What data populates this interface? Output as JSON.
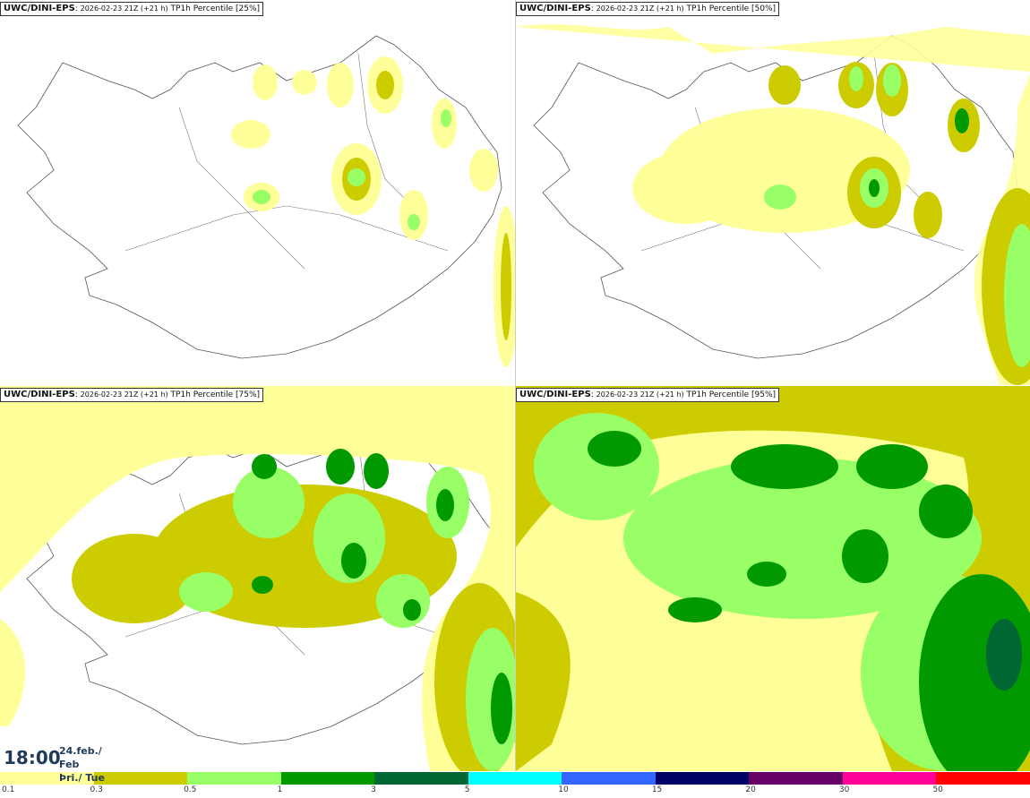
{
  "panels": [
    {
      "model": "UWC/DINI-EPS",
      "run": "2026-02-23 21Z (+21 h)",
      "field": "TP1h Percentile [25%]"
    },
    {
      "model": "UWC/DINI-EPS",
      "run": "2026-02-23 21Z (+21 h)",
      "field": "TP1h Percentile [50%]"
    },
    {
      "model": "UWC/DINI-EPS",
      "run": "2026-02-23 21Z (+21 h)",
      "field": "TP1h Percentile [75%]"
    },
    {
      "model": "UWC/DINI-EPS",
      "run": "2026-02-23 21Z (+21 h)",
      "field": "TP1h Percentile [95%]"
    }
  ],
  "time": {
    "hour": "18:00",
    "date_line": "24.feb./ Feb",
    "day_line": "Þri./ Tue"
  },
  "legend": {
    "colors": [
      "#ffff99",
      "#cccc00",
      "#99ff66",
      "#009900",
      "#006633",
      "#00ffff",
      "#3366ff",
      "#000066",
      "#660066",
      "#ff0099",
      "#ff0000"
    ],
    "ticks": [
      "0.1",
      "0.3",
      "0.5",
      "1",
      "3",
      "5",
      "10",
      "15",
      "20",
      "30",
      "50"
    ]
  }
}
